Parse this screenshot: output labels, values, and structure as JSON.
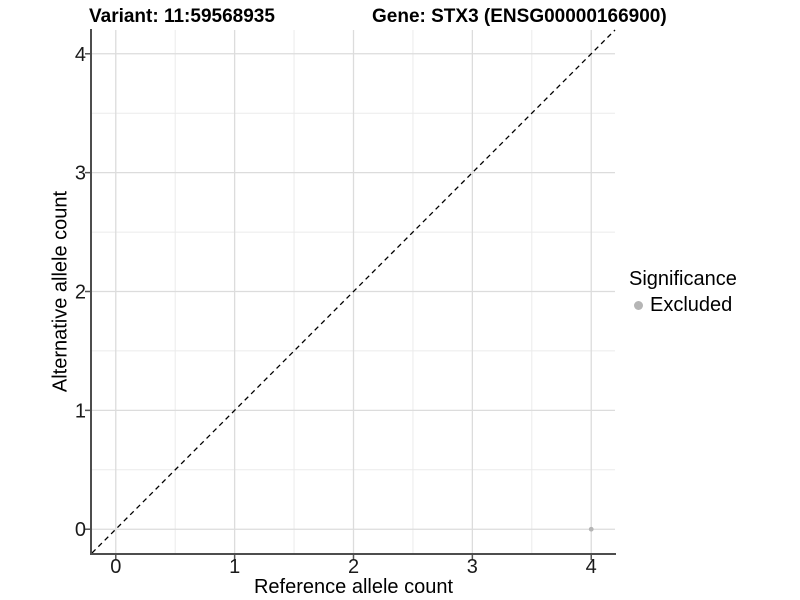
{
  "chart_data": {
    "type": "scatter",
    "title_left": "Variant: 11:59568935",
    "title_right": "Gene: STX3 (ENSG00000166900)",
    "xlabel": "Reference allele count",
    "ylabel": "Alternative allele count",
    "xlim": [
      -0.2,
      4.2
    ],
    "ylim": [
      -0.2,
      4.2
    ],
    "x_ticks": [
      0,
      1,
      2,
      3,
      4
    ],
    "y_ticks": [
      0,
      1,
      2,
      3,
      4
    ],
    "x_minor_ticks": [
      0.5,
      1.5,
      2.5,
      3.5
    ],
    "y_minor_ticks": [
      0.5,
      1.5,
      2.5,
      3.5
    ],
    "grid": "major+minor",
    "series": [
      {
        "name": "Excluded",
        "color": "#b5b5b5",
        "points": [
          {
            "x": 4,
            "y": 0
          }
        ]
      }
    ],
    "reference_line": {
      "type": "identity",
      "from": [
        -0.2,
        -0.2
      ],
      "to": [
        4.2,
        4.2
      ],
      "style": "dashed",
      "color": "#000000"
    },
    "legend": {
      "title": "Significance",
      "position": "right",
      "items": [
        {
          "label": "Excluded",
          "color": "#b5b5b5"
        }
      ]
    },
    "colors": {
      "background": "#ffffff",
      "grid_major": "#dcdcdc",
      "grid_minor": "#ebebeb",
      "axis_line": "#4d4d4d",
      "tick_mark": "#555555",
      "text": "#1a1a1a"
    }
  }
}
